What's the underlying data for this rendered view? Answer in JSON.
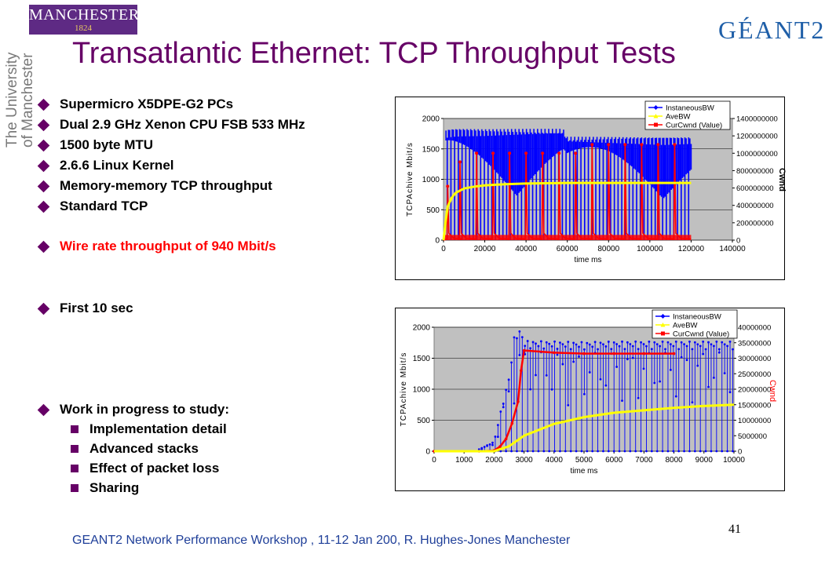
{
  "slide": {
    "title": "Transatlantic Ethernet: TCP Throughput Tests",
    "logos": {
      "manchester_name": "MANCHESTER",
      "manchester_year": "1824",
      "university_line1": "The University",
      "university_line2": "of Manchester",
      "geant": "GÉANT2"
    },
    "bullets": [
      "Supermicro X5DPE-G2 PCs",
      "Dual 2.9 GHz Xenon CPU FSB 533 MHz",
      "1500 byte MTU",
      "2.6.6 Linux Kernel",
      "Memory-memory TCP throughput",
      "Standard TCP",
      "Wire rate throughput of 940 Mbit/s",
      "First 10 sec",
      "Work in progress to study:"
    ],
    "subbullets": [
      "Implementation detail",
      "Advanced stacks",
      "Effect of packet loss",
      "Sharing"
    ],
    "footer": "GEANT2 Network Performance Workshop , 11-12 Jan 200,  R. Hughes-Jones  Manchester",
    "page_number": "41",
    "colors": {
      "title": "#660066",
      "bullet_mark": "#660066",
      "highlight": "#ff0000",
      "footer": "#1f3f99",
      "instant_bw": "#0000ff",
      "ave_bw": "#ffff00",
      "cwnd": "#ff0000"
    }
  },
  "chart_data": [
    {
      "type": "line",
      "xlabel": "time ms",
      "ylabel": "TCPAchive Mbit/s",
      "y2label": "Cwnd",
      "xlim": [
        0,
        140000
      ],
      "ylim": [
        0,
        2000
      ],
      "y2lim": [
        0,
        1400000000
      ],
      "xticks": [
        "0",
        "20000",
        "40000",
        "60000",
        "80000",
        "100000",
        "120000",
        "140000"
      ],
      "yticks": [
        "0",
        "500",
        "1000",
        "1500",
        "2000"
      ],
      "y2ticks": [
        "0",
        "200000000",
        "400000000",
        "600000000",
        "800000000",
        "1000000000",
        "1200000000",
        "1400000000"
      ],
      "grid": true,
      "legend": "top-right",
      "series": [
        {
          "name": "InstaneousBW",
          "axis": "left",
          "x": [
            0,
            500,
            1000,
            2000,
            5000,
            10000,
            20000,
            40000,
            58000,
            60000,
            80000,
            100000,
            120000
          ],
          "values": [
            0,
            1950,
            1820,
            1830,
            1840,
            1840,
            1830,
            1830,
            1830,
            1700,
            1700,
            1700,
            1700
          ],
          "lower": [
            0,
            0,
            0,
            0,
            0,
            0,
            0,
            0,
            0,
            0,
            0,
            0,
            0
          ]
        },
        {
          "name": "AveBW",
          "axis": "left",
          "x": [
            0,
            1000,
            2000,
            4000,
            6000,
            10000,
            15000,
            20000,
            30000,
            40000,
            60000,
            80000,
            100000,
            120000
          ],
          "values": [
            0,
            300,
            550,
            700,
            780,
            850,
            880,
            900,
            920,
            930,
            940,
            940,
            940,
            940
          ]
        },
        {
          "name": "CurCwnd (Value)",
          "axis": "right",
          "x": [
            0,
            2000,
            8000,
            16000,
            24000,
            32000,
            40000,
            48000,
            56000,
            64000,
            72000,
            80000,
            88000,
            96000,
            104000,
            112000,
            120000
          ],
          "peaks": [
            0,
            620000000,
            900000000,
            1000000000,
            1000000000,
            1000000000,
            1000000000,
            1000000000,
            1000000000,
            1000000000,
            1100000000,
            1100000000,
            1100000000,
            1100000000,
            1100000000,
            1100000000,
            0
          ]
        }
      ]
    },
    {
      "type": "line",
      "xlabel": "time ms",
      "ylabel": "TCPAchive Mbit/s",
      "y2label": "Cwnd",
      "xlim": [
        0,
        10000
      ],
      "ylim": [
        0,
        2000
      ],
      "y2lim": [
        0,
        40000000
      ],
      "xticks": [
        "0",
        "1000",
        "2000",
        "3000",
        "4000",
        "5000",
        "6000",
        "7000",
        "8000",
        "9000",
        "10000"
      ],
      "yticks": [
        "0",
        "500",
        "1000",
        "1500",
        "2000"
      ],
      "y2ticks": [
        "0",
        "5000000",
        "10000000",
        "15000000",
        "20000000",
        "25000000",
        "30000000",
        "35000000",
        "40000000"
      ],
      "grid": true,
      "legend": "top-right",
      "series": [
        {
          "name": "InstaneousBW",
          "axis": "left",
          "x": [
            0,
            1500,
            2000,
            2200,
            2500,
            2700,
            2900,
            3000,
            4000,
            5000,
            6000,
            7000,
            8000,
            9000,
            10000
          ],
          "values": [
            0,
            30,
            150,
            600,
            1200,
            1950,
            1950,
            1780,
            1770,
            1760,
            1770,
            1770,
            1770,
            1770,
            1770
          ]
        },
        {
          "name": "AveBW",
          "axis": "left",
          "x": [
            0,
            2000,
            2500,
            3000,
            4000,
            5000,
            6000,
            7000,
            8000,
            9000,
            10000
          ],
          "values": [
            0,
            0,
            80,
            250,
            440,
            550,
            620,
            660,
            700,
            730,
            750
          ]
        },
        {
          "name": "CurCwnd (Value)",
          "axis": "right",
          "x": [
            0,
            1500,
            2000,
            2200,
            2400,
            2600,
            2800,
            2900,
            3000,
            4000,
            5000,
            6000,
            7000,
            8000
          ],
          "values": [
            0,
            0,
            200000,
            1500000,
            4000000,
            9000000,
            16000000,
            26000000,
            32500000,
            31800000,
            31500000,
            31500000,
            31500000,
            31500000
          ]
        }
      ]
    }
  ]
}
